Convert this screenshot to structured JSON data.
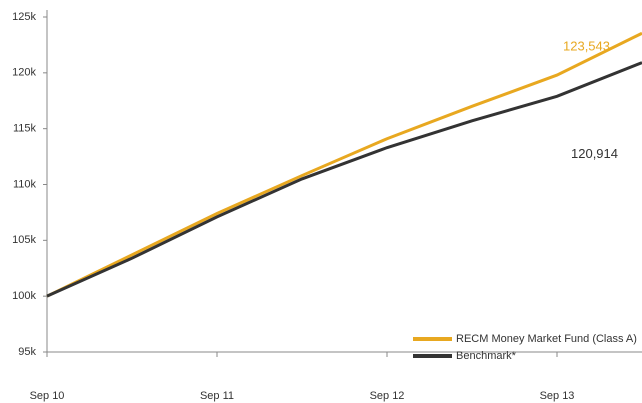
{
  "chart_data": {
    "type": "line",
    "x": [
      0,
      6,
      12,
      18,
      24,
      30,
      36,
      42
    ],
    "xlim": [
      0,
      42
    ],
    "xticks": [
      {
        "value": 0,
        "label": "Sep 10"
      },
      {
        "value": 12,
        "label": "Sep 11"
      },
      {
        "value": 24,
        "label": "Sep 12"
      },
      {
        "value": 36,
        "label": "Sep 13"
      }
    ],
    "ylim": [
      95000,
      125000
    ],
    "yticks": [
      {
        "value": 95000,
        "label": "95k"
      },
      {
        "value": 100000,
        "label": "100k"
      },
      {
        "value": 105000,
        "label": "105k"
      },
      {
        "value": 110000,
        "label": "110k"
      },
      {
        "value": 115000,
        "label": "115k"
      },
      {
        "value": 120000,
        "label": "120k"
      },
      {
        "value": 125000,
        "label": "125k"
      }
    ],
    "legend": "bottom-right",
    "series": [
      {
        "name": "RECM Money Market Fund (Class A)",
        "color": "#e8a820",
        "values": [
          100000,
          103700,
          107400,
          110800,
          114100,
          117000,
          119800,
          123543
        ],
        "value_labels": [
          null,
          null,
          null,
          null,
          null,
          null,
          null,
          "123,543"
        ]
      },
      {
        "name": "Benchmark*",
        "color": "#333333",
        "values": [
          100000,
          103400,
          107100,
          110500,
          113300,
          115700,
          117900,
          120914
        ],
        "value_labels": [
          null,
          null,
          null,
          null,
          null,
          null,
          null,
          "120,914"
        ]
      }
    ]
  }
}
